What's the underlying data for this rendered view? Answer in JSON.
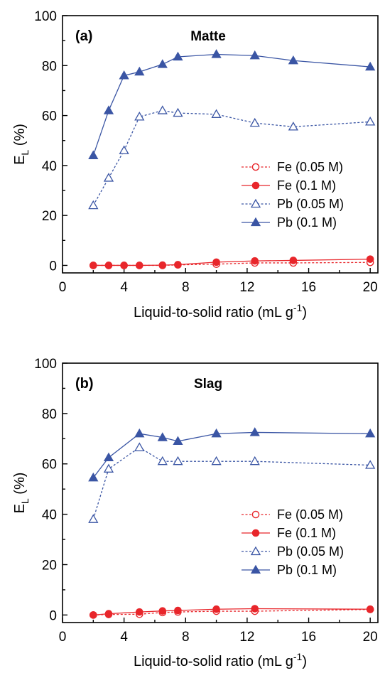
{
  "chart_data": [
    {
      "type": "line",
      "panel_label": "(a)",
      "title": "Matte",
      "xlabel": "Liquid-to-solid ratio (mL g",
      "xlabel_sup": "-1",
      "xlabel_end": ")",
      "ylabel": "E",
      "ylabel_sub": "L",
      "ylabel_end": " (%)",
      "xlim": [
        0,
        20.5
      ],
      "ylim": [
        -3,
        100
      ],
      "xticks": [
        0,
        4,
        8,
        12,
        16,
        20
      ],
      "yticks": [
        0,
        20,
        40,
        60,
        80,
        100
      ],
      "legend_position": "center-right",
      "series": [
        {
          "name": "Fe (0.05 M)",
          "color": "#e8262b",
          "marker": "circle-open",
          "dash": true,
          "x": [
            2,
            3,
            4,
            5,
            6.5,
            7.5,
            10,
            12.5,
            15,
            20
          ],
          "y": [
            0,
            0,
            0,
            0,
            0,
            0.2,
            0.5,
            1.0,
            1.0,
            1.2
          ]
        },
        {
          "name": "Fe (0.1 M)",
          "color": "#e8262b",
          "marker": "circle-filled",
          "dash": false,
          "x": [
            2,
            3,
            4,
            5,
            6.5,
            7.5,
            10,
            12.5,
            15,
            20
          ],
          "y": [
            0,
            0,
            0,
            0,
            0.1,
            0.3,
            1.3,
            1.8,
            2.0,
            2.5
          ]
        },
        {
          "name": "Pb (0.05 M)",
          "color": "#3a55a4",
          "marker": "triangle-open",
          "dash": true,
          "x": [
            2,
            3,
            4,
            5,
            6.5,
            7.5,
            10,
            12.5,
            15,
            20
          ],
          "y": [
            24,
            35,
            46,
            59.5,
            62,
            61,
            60.5,
            57,
            55.5,
            57.5
          ]
        },
        {
          "name": "Pb (0.1 M)",
          "color": "#3a55a4",
          "marker": "triangle-filled",
          "dash": false,
          "x": [
            2,
            3,
            4,
            5,
            6.5,
            7.5,
            10,
            12.5,
            15,
            20
          ],
          "y": [
            44,
            62,
            76,
            77.5,
            80.5,
            83.5,
            84.5,
            84,
            82,
            79.5
          ]
        }
      ]
    },
    {
      "type": "line",
      "panel_label": "(b)",
      "title": "Slag",
      "xlabel": "Liquid-to-solid ratio (mL g",
      "xlabel_sup": "-1",
      "xlabel_end": ")",
      "ylabel": "E",
      "ylabel_sub": "L",
      "ylabel_end": " (%)",
      "xlim": [
        0,
        20.5
      ],
      "ylim": [
        -3,
        100
      ],
      "xticks": [
        0,
        4,
        8,
        12,
        16,
        20
      ],
      "yticks": [
        0,
        20,
        40,
        60,
        80,
        100
      ],
      "legend_position": "center-right",
      "series": [
        {
          "name": "Fe (0.05 M)",
          "color": "#e8262b",
          "marker": "circle-open",
          "dash": true,
          "x": [
            2,
            3,
            5,
            6.5,
            7.5,
            10,
            12.5,
            20
          ],
          "y": [
            0,
            0.2,
            0.3,
            1.0,
            1.2,
            1.5,
            1.5,
            2.2
          ]
        },
        {
          "name": "Fe (0.1 M)",
          "color": "#e8262b",
          "marker": "circle-filled",
          "dash": false,
          "x": [
            2,
            3,
            5,
            6.5,
            7.5,
            10,
            12.5,
            20
          ],
          "y": [
            0,
            0.5,
            1.2,
            1.6,
            1.8,
            2.3,
            2.5,
            2.3
          ]
        },
        {
          "name": "Pb (0.05 M)",
          "color": "#3a55a4",
          "marker": "triangle-open",
          "dash": true,
          "x": [
            2,
            3,
            5,
            6.5,
            7.5,
            10,
            12.5,
            20
          ],
          "y": [
            38,
            58,
            66.5,
            61,
            61,
            61,
            61,
            59.5
          ]
        },
        {
          "name": "Pb (0.1 M)",
          "color": "#3a55a4",
          "marker": "triangle-filled",
          "dash": false,
          "x": [
            2,
            3,
            5,
            6.5,
            7.5,
            10,
            12.5,
            20
          ],
          "y": [
            54.5,
            62.5,
            72,
            70.5,
            69,
            72,
            72.5,
            72
          ]
        }
      ]
    }
  ]
}
